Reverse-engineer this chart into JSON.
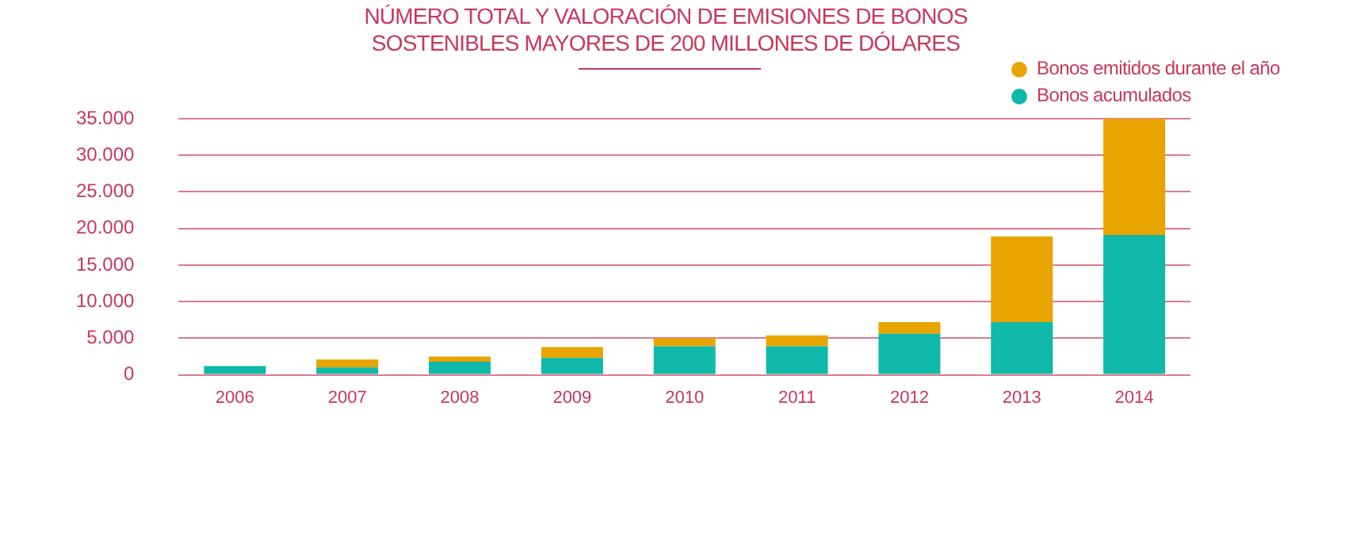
{
  "chart_data": {
    "type": "bar",
    "title": "NÚMERO TOTAL Y VALORACIÓN DE EMISIONES DE BONOS\nSOSTENIBLES MAYORES DE 200 MILLONES DE DÓLARES",
    "categories": [
      "2006",
      "2007",
      "2008",
      "2009",
      "2010",
      "2011",
      "2012",
      "2013",
      "2014"
    ],
    "stacked": true,
    "series": [
      {
        "name": "Bonos acumulados",
        "color": "#0fb8a8",
        "values": [
          1200,
          1000,
          1800,
          2300,
          3900,
          3900,
          5600,
          7200,
          19100
        ]
      },
      {
        "name": "Bonos emitidos durante el año",
        "color": "#e8a400",
        "values": [
          0,
          1100,
          700,
          1500,
          1100,
          1500,
          1600,
          11700,
          15900
        ]
      }
    ],
    "ylim": [
      0,
      35000
    ],
    "yticks": [
      {
        "value": 0,
        "label": "0"
      },
      {
        "value": 5000,
        "label": "5.000"
      },
      {
        "value": 10000,
        "label": "10.000"
      },
      {
        "value": 15000,
        "label": "15.000"
      },
      {
        "value": 20000,
        "label": "20.000"
      },
      {
        "value": 25000,
        "label": "25.000"
      },
      {
        "value": 30000,
        "label": "30.000"
      },
      {
        "value": 35000,
        "label": "35.000"
      }
    ],
    "grid": "y",
    "legend": "top right"
  }
}
